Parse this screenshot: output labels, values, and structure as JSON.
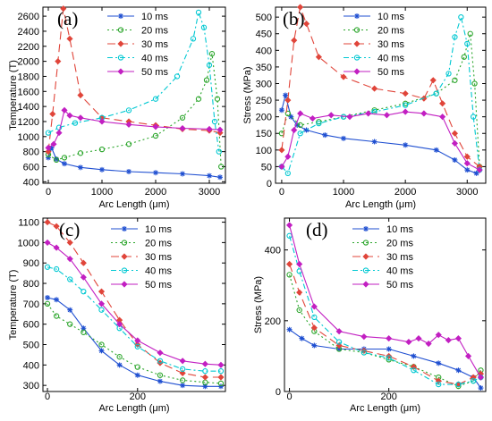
{
  "chart_data": [
    {
      "type": "line",
      "panel_label": "(a)",
      "xlabel": "Arc Length (μm)",
      "ylabel": "Temperature (T)",
      "xlim": [
        -100,
        3300
      ],
      "ylim": [
        380,
        2720
      ],
      "xticks": [
        0,
        1000,
        2000,
        3000
      ],
      "yticks": [
        400,
        600,
        800,
        1000,
        1200,
        1400,
        1600,
        1800,
        2000,
        2200,
        2400,
        2600
      ],
      "grid": false,
      "legend_position": "top-center",
      "series": [
        {
          "name": "10 ms",
          "color": "#1f4fd1",
          "marker": "star",
          "dash": "",
          "x": [
            0,
            60,
            150,
            300,
            600,
            1000,
            1500,
            2000,
            2500,
            3000,
            3200
          ],
          "y": [
            720,
            850,
            700,
            640,
            590,
            560,
            535,
            520,
            505,
            480,
            460
          ]
        },
        {
          "name": "20 ms",
          "color": "#2aa52a",
          "marker": "circle",
          "dash": "2,3",
          "x": [
            0,
            150,
            300,
            600,
            1000,
            1500,
            2000,
            2500,
            2800,
            2950,
            3050,
            3150,
            3220
          ],
          "y": [
            760,
            690,
            720,
            780,
            830,
            900,
            1010,
            1250,
            1500,
            1750,
            2100,
            1500,
            600
          ]
        },
        {
          "name": "30 ms",
          "color": "#e0453a",
          "marker": "diamond",
          "dash": "9,5",
          "x": [
            0,
            80,
            180,
            280,
            400,
            600,
            1000,
            1500,
            2000,
            2500,
            3000,
            3200
          ],
          "y": [
            800,
            1300,
            2000,
            2700,
            2300,
            1550,
            1250,
            1200,
            1150,
            1100,
            1080,
            1050
          ]
        },
        {
          "name": "40 ms",
          "color": "#00c8d2",
          "marker": "circle",
          "dash": "6,3,2,3",
          "x": [
            0,
            200,
            500,
            1000,
            1500,
            2000,
            2400,
            2700,
            2800,
            2900,
            3000,
            3100,
            3180
          ],
          "y": [
            1050,
            1120,
            1180,
            1250,
            1350,
            1500,
            1800,
            2300,
            2650,
            2450,
            1950,
            1200,
            800
          ]
        },
        {
          "name": "50 ms",
          "color": "#c21fc2",
          "marker": "diamond",
          "dash": "",
          "x": [
            0,
            100,
            200,
            300,
            400,
            600,
            1000,
            1500,
            2000,
            2500,
            3000,
            3200
          ],
          "y": [
            850,
            900,
            1050,
            1350,
            1280,
            1250,
            1200,
            1160,
            1130,
            1110,
            1100,
            1090
          ]
        }
      ]
    },
    {
      "type": "line",
      "panel_label": "(b)",
      "xlabel": "Arc Length (μm)",
      "ylabel": "Stress (MPa)",
      "xlim": [
        -100,
        3300
      ],
      "ylim": [
        0,
        530
      ],
      "xticks": [
        0,
        1000,
        2000,
        3000
      ],
      "yticks": [
        0,
        50,
        100,
        150,
        200,
        250,
        300,
        350,
        400,
        450,
        500
      ],
      "grid": false,
      "legend_position": "top-center",
      "series": [
        {
          "name": "10 ms",
          "color": "#1f4fd1",
          "marker": "star",
          "dash": "",
          "x": [
            0,
            60,
            150,
            250,
            400,
            700,
            1000,
            1500,
            2000,
            2500,
            2800,
            3000,
            3150
          ],
          "y": [
            220,
            265,
            200,
            175,
            160,
            145,
            135,
            125,
            115,
            100,
            70,
            40,
            30
          ]
        },
        {
          "name": "20 ms",
          "color": "#2aa52a",
          "marker": "circle",
          "dash": "2,3",
          "x": [
            0,
            100,
            300,
            600,
            1000,
            1500,
            2000,
            2500,
            2800,
            2950,
            3050,
            3120,
            3200
          ],
          "y": [
            150,
            210,
            175,
            185,
            200,
            220,
            240,
            270,
            310,
            380,
            450,
            300,
            50
          ]
        },
        {
          "name": "30 ms",
          "color": "#e0453a",
          "marker": "diamond",
          "dash": "9,5",
          "x": [
            0,
            100,
            200,
            300,
            400,
            600,
            1000,
            1500,
            2000,
            2300,
            2450,
            2600,
            2800,
            3000,
            3200
          ],
          "y": [
            100,
            250,
            430,
            530,
            480,
            380,
            320,
            285,
            270,
            255,
            310,
            240,
            150,
            80,
            50
          ]
        },
        {
          "name": "40 ms",
          "color": "#00c8d2",
          "marker": "circle",
          "dash": "6,3,2,3",
          "x": [
            0,
            100,
            300,
            600,
            1000,
            1500,
            2000,
            2500,
            2700,
            2800,
            2900,
            3000,
            3100,
            3200
          ],
          "y": [
            50,
            30,
            150,
            180,
            200,
            215,
            235,
            270,
            330,
            440,
            500,
            420,
            200,
            40
          ]
        },
        {
          "name": "50 ms",
          "color": "#c21fc2",
          "marker": "diamond",
          "dash": "",
          "x": [
            0,
            100,
            200,
            300,
            500,
            800,
            1100,
            1400,
            1700,
            2000,
            2300,
            2600,
            2800,
            3000,
            3200
          ],
          "y": [
            50,
            80,
            160,
            210,
            195,
            205,
            200,
            210,
            205,
            215,
            210,
            200,
            120,
            60,
            40
          ]
        }
      ]
    },
    {
      "type": "line",
      "panel_label": "(c)",
      "xlabel": "Arc Length (μm)",
      "ylabel": "Temperature (T)",
      "xlim": [
        -10,
        395
      ],
      "ylim": [
        270,
        1120
      ],
      "xticks": [
        0,
        200
      ],
      "yticks": [
        300,
        400,
        500,
        600,
        700,
        800,
        900,
        1000,
        1100
      ],
      "grid": false,
      "legend_position": "top-center",
      "series": [
        {
          "name": "10 ms",
          "color": "#1f4fd1",
          "marker": "star",
          "dash": "",
          "x": [
            0,
            20,
            50,
            80,
            120,
            160,
            200,
            250,
            300,
            350,
            385
          ],
          "y": [
            730,
            720,
            670,
            580,
            470,
            400,
            350,
            320,
            300,
            295,
            295
          ]
        },
        {
          "name": "20 ms",
          "color": "#2aa52a",
          "marker": "circle",
          "dash": "2,3",
          "x": [
            0,
            20,
            50,
            80,
            120,
            160,
            200,
            250,
            300,
            350,
            385
          ],
          "y": [
            700,
            640,
            600,
            560,
            500,
            440,
            390,
            350,
            325,
            315,
            310
          ]
        },
        {
          "name": "30 ms",
          "color": "#e0453a",
          "marker": "diamond",
          "dash": "9,5",
          "x": [
            0,
            20,
            50,
            80,
            120,
            160,
            200,
            250,
            300,
            350,
            385
          ],
          "y": [
            1100,
            1080,
            1000,
            900,
            760,
            620,
            500,
            410,
            360,
            340,
            340
          ]
        },
        {
          "name": "40 ms",
          "color": "#00c8d2",
          "marker": "circle",
          "dash": "6,3,2,3",
          "x": [
            0,
            20,
            50,
            80,
            120,
            160,
            200,
            250,
            300,
            350,
            385
          ],
          "y": [
            880,
            870,
            820,
            760,
            670,
            580,
            490,
            420,
            380,
            370,
            370
          ]
        },
        {
          "name": "50 ms",
          "color": "#c21fc2",
          "marker": "diamond",
          "dash": "",
          "x": [
            0,
            20,
            50,
            80,
            120,
            160,
            200,
            250,
            300,
            350,
            385
          ],
          "y": [
            1000,
            975,
            920,
            830,
            700,
            600,
            520,
            460,
            420,
            405,
            400
          ]
        }
      ]
    },
    {
      "type": "line",
      "panel_label": "(d)",
      "xlabel": "Arc Length (μm)",
      "ylabel": "Stress (MPa)",
      "xlim": [
        -10,
        395
      ],
      "ylim": [
        0,
        490
      ],
      "xticks": [
        0,
        200
      ],
      "yticks": [
        0,
        200,
        400
      ],
      "grid": false,
      "legend_position": "top-center",
      "series": [
        {
          "name": "10 ms",
          "color": "#1f4fd1",
          "marker": "star",
          "dash": "",
          "x": [
            0,
            25,
            50,
            100,
            150,
            200,
            250,
            300,
            340,
            370,
            385
          ],
          "y": [
            175,
            150,
            130,
            120,
            120,
            120,
            100,
            80,
            60,
            40,
            10
          ]
        },
        {
          "name": "20 ms",
          "color": "#2aa52a",
          "marker": "circle",
          "dash": "2,3",
          "x": [
            0,
            20,
            50,
            100,
            150,
            200,
            250,
            300,
            340,
            370,
            385
          ],
          "y": [
            330,
            230,
            170,
            120,
            110,
            90,
            70,
            40,
            15,
            30,
            60
          ]
        },
        {
          "name": "30 ms",
          "color": "#e0453a",
          "marker": "diamond",
          "dash": "9,5",
          "x": [
            0,
            20,
            50,
            100,
            150,
            200,
            250,
            300,
            340,
            370,
            385
          ],
          "y": [
            360,
            280,
            180,
            130,
            115,
            100,
            70,
            30,
            20,
            40,
            50
          ]
        },
        {
          "name": "40 ms",
          "color": "#00c8d2",
          "marker": "circle",
          "dash": "6,3,2,3",
          "x": [
            0,
            20,
            50,
            100,
            150,
            200,
            250,
            300,
            340,
            370,
            385
          ],
          "y": [
            440,
            340,
            210,
            140,
            110,
            95,
            60,
            20,
            20,
            30,
            40
          ]
        },
        {
          "name": "50 ms",
          "color": "#c21fc2",
          "marker": "diamond",
          "dash": "",
          "x": [
            0,
            20,
            50,
            100,
            150,
            200,
            240,
            260,
            280,
            300,
            320,
            340,
            360,
            385
          ],
          "y": [
            470,
            360,
            240,
            170,
            155,
            150,
            140,
            150,
            135,
            160,
            145,
            150,
            100,
            40
          ]
        }
      ]
    }
  ]
}
